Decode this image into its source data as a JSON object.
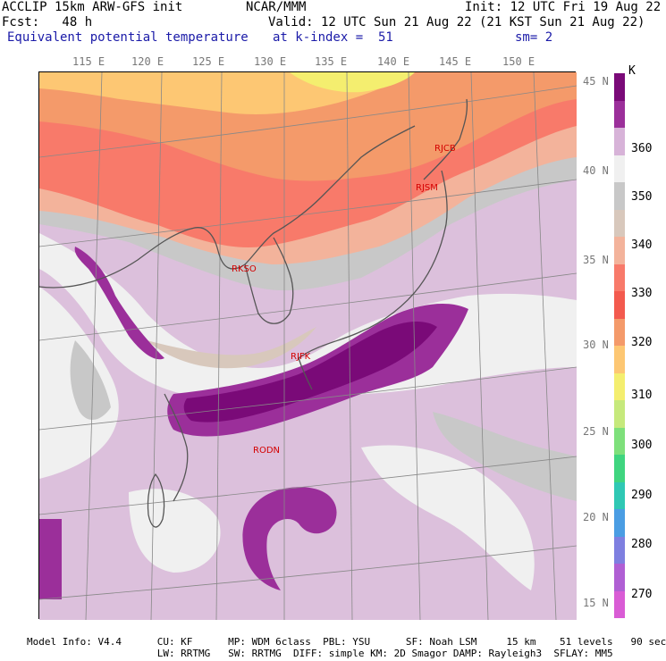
{
  "header": {
    "model": "ACCLIP 15km ARW-GFS init",
    "org": "NCAR/MMM",
    "init": "Init: 12 UTC Fri 19 Aug 22",
    "fcst": "Fcst:   48 h",
    "valid": "Valid: 12 UTC Sun 21 Aug 22 (21 KST Sun 21 Aug 22)",
    "field": "Equivalent potential temperature",
    "level": "at k-index =  51",
    "smooth": "sm= 2"
  },
  "lon_labels": [
    "115 E",
    "120 E",
    "125 E",
    "130 E",
    "135 E",
    "140 E",
    "145 E",
    "150 E"
  ],
  "lat_labels": [
    "45 N",
    "40 N",
    "35 N",
    "30 N",
    "25 N",
    "20 N",
    "15 N"
  ],
  "colorbar": {
    "unit": "K",
    "labels": [
      "360",
      "350",
      "340",
      "330",
      "320",
      "310",
      "300",
      "290",
      "280",
      "270"
    ],
    "colors": [
      "#7a0a78",
      "#9b2f9a",
      "#d7b3d8",
      "#f0f0f0",
      "#c8c8c8",
      "#d8c8bc",
      "#f3b39b",
      "#f87a6a",
      "#f35a4e",
      "#f49a6a",
      "#fdc773",
      "#f4ee6f",
      "#c6e97c",
      "#7ee07b",
      "#3fd57f",
      "#2fc8b4",
      "#4a9de3",
      "#7e7fe0",
      "#b05fd4",
      "#d95cd5"
    ]
  },
  "stations": [
    "RJCB",
    "RJSM",
    "RKSO",
    "RJFK",
    "RODN"
  ],
  "footer": {
    "line1": "Model Info: V4.4      CU: KF      MP: WDM 6class  PBL: YSU      SF: Noah LSM     15 km    51 levels   90 sec",
    "line2": "                      LW: RRTMG   SW: RRTMG  DIFF: simple KM: 2D Smagor DAMP: Rayleigh3  SFLAY: MM5"
  }
}
